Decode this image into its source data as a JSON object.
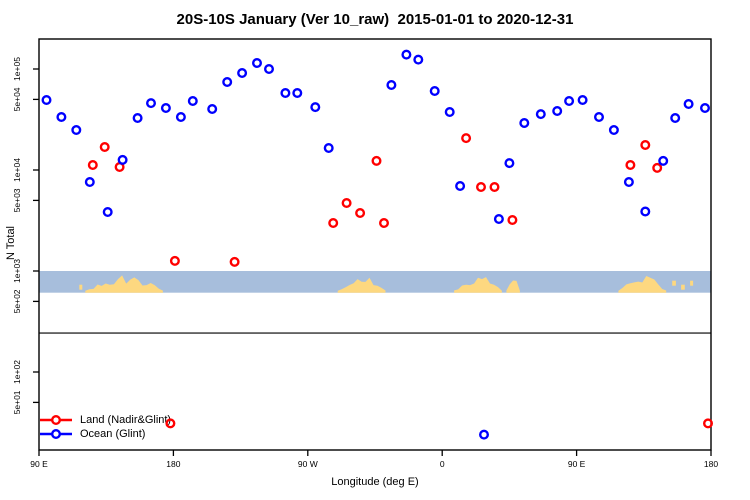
{
  "title": "20S-10S January (Ver 10_raw)  2015-01-01 to 2020-12-31",
  "legend": {
    "items": [
      {
        "label": "Land (Nadir&Glint)",
        "color": "#FF0000"
      },
      {
        "label": "Ocean (Glint)",
        "color": "#0000FF"
      }
    ]
  },
  "chart_data": {
    "type": "scatter",
    "title": "20S-10S January (Ver 10_raw)  2015-01-01 to 2020-12-31",
    "xlabel": "Longitude (deg E)",
    "ylabel": "N Total",
    "y_scale": "log10",
    "y_range": [
      17,
      200000
    ],
    "x_axis_note": "longitude axis wraps: 90E to 180 twice, plotted 90..540 deg",
    "x_range_deg": [
      90,
      540
    ],
    "x_ticks": [
      {
        "deg": 90,
        "label": "90 E"
      },
      {
        "deg": 180,
        "label": "180"
      },
      {
        "deg": 270,
        "label": "90 W"
      },
      {
        "deg": 360,
        "label": "0"
      },
      {
        "deg": 450,
        "label": "90 E"
      },
      {
        "deg": 540,
        "label": "180"
      }
    ],
    "y_ticks": [
      {
        "value": 100000,
        "label": "1e+05"
      },
      {
        "value": 50000,
        "label": "5e+04"
      },
      {
        "value": 10000,
        "label": "1e+04"
      },
      {
        "value": 5000,
        "label": "5e+03"
      },
      {
        "value": 1000,
        "label": "1e+03"
      },
      {
        "value": 500,
        "label": "5e+02"
      },
      {
        "value": 100,
        "label": "1e+02"
      },
      {
        "value": 50,
        "label": "5e+01"
      }
    ],
    "hline_value": 243,
    "hline_color": "#4d4d4d",
    "map_band": {
      "value_top": 1000,
      "value_bottom": 610,
      "ocean_color": "#A7BEDC",
      "land_color": "#FDD880",
      "land_segments_deg": [
        {
          "name": "australia-newguinea-west-copy",
          "from": 121,
          "to": 173
        },
        {
          "name": "south-america",
          "from": 290,
          "to": 322
        },
        {
          "name": "africa",
          "from": 368,
          "to": 400
        },
        {
          "name": "madagascar",
          "from": 403,
          "to": 412
        },
        {
          "name": "australia-newguinea-east-copy",
          "from": 478,
          "to": 510
        }
      ],
      "islands_deg": [
        {
          "from": 117,
          "to": 119
        },
        {
          "from": 514,
          "to": 516.5
        },
        {
          "from": 520,
          "to": 522.5
        },
        {
          "from": 526,
          "to": 528
        }
      ]
    },
    "series": [
      {
        "name": "Land (Nadir&Glint)",
        "color": "#FF0000",
        "points": [
          [
            126,
            11200
          ],
          [
            134,
            16900
          ],
          [
            144,
            10700
          ],
          [
            178,
            31
          ],
          [
            181,
            1260
          ],
          [
            221,
            1230
          ],
          [
            287,
            2990
          ],
          [
            296,
            4710
          ],
          [
            305,
            3750
          ],
          [
            316,
            12300
          ],
          [
            321,
            2990
          ],
          [
            376,
            20700
          ],
          [
            386,
            6790
          ],
          [
            395,
            6790
          ],
          [
            407,
            3200
          ],
          [
            486,
            11200
          ],
          [
            496,
            17700
          ],
          [
            504,
            10500
          ],
          [
            538,
            31
          ]
        ]
      },
      {
        "name": "Ocean (Glint)",
        "color": "#0000FF",
        "points": [
          [
            95,
            49300
          ],
          [
            105,
            33500
          ],
          [
            115,
            24900
          ],
          [
            124,
            7600
          ],
          [
            136,
            3840
          ],
          [
            146,
            12600
          ],
          [
            156,
            32700
          ],
          [
            165,
            46000
          ],
          [
            175,
            41100
          ],
          [
            185,
            33500
          ],
          [
            193,
            48200
          ],
          [
            206,
            40200
          ],
          [
            216,
            74300
          ],
          [
            226,
            91300
          ],
          [
            236,
            114600
          ],
          [
            244,
            100000
          ],
          [
            255,
            57800
          ],
          [
            263,
            57800
          ],
          [
            275,
            42000
          ],
          [
            284,
            16500
          ],
          [
            326,
            69500
          ],
          [
            336,
            139000
          ],
          [
            344,
            124000
          ],
          [
            355,
            60500
          ],
          [
            365,
            37500
          ],
          [
            372,
            6950
          ],
          [
            388,
            24
          ],
          [
            398,
            3270
          ],
          [
            405,
            11700
          ],
          [
            415,
            29200
          ],
          [
            426,
            35800
          ],
          [
            437,
            38400
          ],
          [
            445,
            48200
          ],
          [
            454,
            49300
          ],
          [
            465,
            33500
          ],
          [
            475,
            24900
          ],
          [
            485,
            7600
          ],
          [
            496,
            3880
          ],
          [
            508,
            12300
          ],
          [
            516,
            32700
          ],
          [
            525,
            45000
          ],
          [
            536,
            41100
          ]
        ]
      }
    ]
  }
}
